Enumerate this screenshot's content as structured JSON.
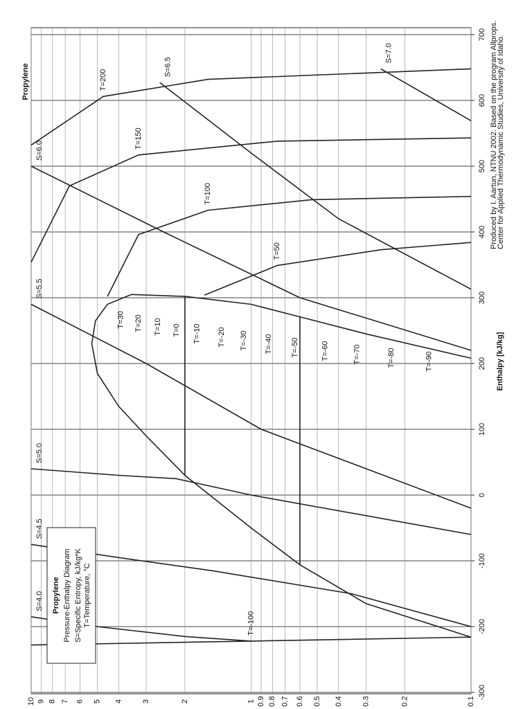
{
  "chart_data": {
    "type": "line",
    "title": "Propylene",
    "xlabel": "Enthalpy [kJ/kg]",
    "xlim": [
      -300,
      700
    ],
    "xticks": [
      -300,
      -200,
      -100,
      0,
      100,
      200,
      300,
      400,
      500,
      600,
      700
    ],
    "ylim": [
      0.1,
      10
    ],
    "yticks": [
      0.1,
      0.2,
      0.3,
      0.4,
      0.5,
      0.6,
      0.7,
      0.8,
      0.9,
      1,
      2,
      3,
      4,
      5,
      6,
      7,
      8,
      9,
      10
    ],
    "yscale": "log",
    "grid": true,
    "color": "#222222",
    "series": [
      {
        "x": [
          -216,
          -165,
          -106,
          -50,
          30,
          90,
          135,
          185,
          230,
          265,
          290,
          305,
          302,
          290,
          271,
          245,
          208
        ],
        "values": [
          0.1,
          0.3,
          0.6,
          1,
          2,
          3,
          4,
          5,
          5.3,
          5.1,
          4.5,
          3.5,
          2,
          1,
          0.6,
          0.3,
          0.1
        ]
      },
      {
        "x": [
          30,
          302
        ],
        "values": [
          2,
          2
        ]
      },
      {
        "x": [
          -106,
          271
        ],
        "values": [
          0.6,
          0.6
        ]
      },
      {
        "label": "T=-100",
        "x": [
          -228,
          -222,
          -216
        ],
        "values": [
          10,
          1,
          0.1
        ]
      },
      {
        "label": "T=50",
        "x": [
          304,
          349,
          373,
          384
        ],
        "values": [
          1.63,
          0.76,
          0.257,
          0.1
        ]
      },
      {
        "label": "T=100",
        "x": [
          302,
          396,
          433,
          449,
          454
        ],
        "values": [
          4.5,
          3.25,
          1.57,
          0.53,
          0.1
        ]
      },
      {
        "label": "T=150",
        "x": [
          354,
          470,
          517,
          538,
          543
        ],
        "values": [
          10,
          6.7,
          3.25,
          0.76,
          0.1
        ]
      },
      {
        "label": "T=200",
        "x": [
          532,
          606,
          632,
          648
        ],
        "values": [
          10,
          4.7,
          1.57,
          0.1
        ]
      },
      {
        "label": "S=4.0",
        "x": [
          -185,
          -200,
          -215,
          -222
        ],
        "values": [
          10,
          5,
          2,
          1
        ]
      },
      {
        "label": "S=4.5",
        "x": [
          -75,
          -95,
          -115,
          -150,
          -200
        ],
        "values": [
          10,
          4,
          1.5,
          0.35,
          0.1
        ]
      },
      {
        "label": "S=5.0",
        "x": [
          40,
          30,
          25,
          0,
          -60
        ],
        "values": [
          10,
          4,
          2.2,
          1,
          0.1
        ]
      },
      {
        "label": "S=5.5",
        "x": [
          290,
          200,
          100,
          -20
        ],
        "values": [
          10,
          3,
          0.9,
          0.1
        ]
      },
      {
        "label": "S=6.0",
        "x": [
          500,
          400,
          300,
          220
        ],
        "values": [
          10,
          2.5,
          0.6,
          0.1
        ]
      },
      {
        "label": "S=6.5",
        "x": [
          627,
          520,
          420,
          313
        ],
        "values": [
          2.6,
          1,
          0.4,
          0.1
        ]
      },
      {
        "label": "S=7.0",
        "x": [
          648,
          569
        ],
        "values": [
          0.257,
          0.1
        ]
      }
    ],
    "saturation_labels": {
      "labels": [
        "T=30",
        "T=20",
        "T=10",
        "T=0",
        "T=-10",
        "T=-20",
        "T=-30",
        "T=-40",
        "T=-50",
        "T=-60",
        "T=-70",
        "T=-80",
        "T=-90"
      ],
      "pressures": [
        3.9,
        3.25,
        2.65,
        2.18,
        1.76,
        1.36,
        1.08,
        0.83,
        0.63,
        0.46,
        0.33,
        0.23,
        0.155
      ]
    },
    "credits": [
      "Produced by I. Aartun, NTNU 2002. Based on the program Allprops.",
      "Center for Applied Thermodynamic Studies, University of Idaho."
    ],
    "legend_box": {
      "title": "Propylene",
      "lines": [
        "Pressure-Enthalpy Diagram",
        "S=Specific Entropy, kJ/kg*K",
        "T=Temperature, °C"
      ]
    }
  }
}
